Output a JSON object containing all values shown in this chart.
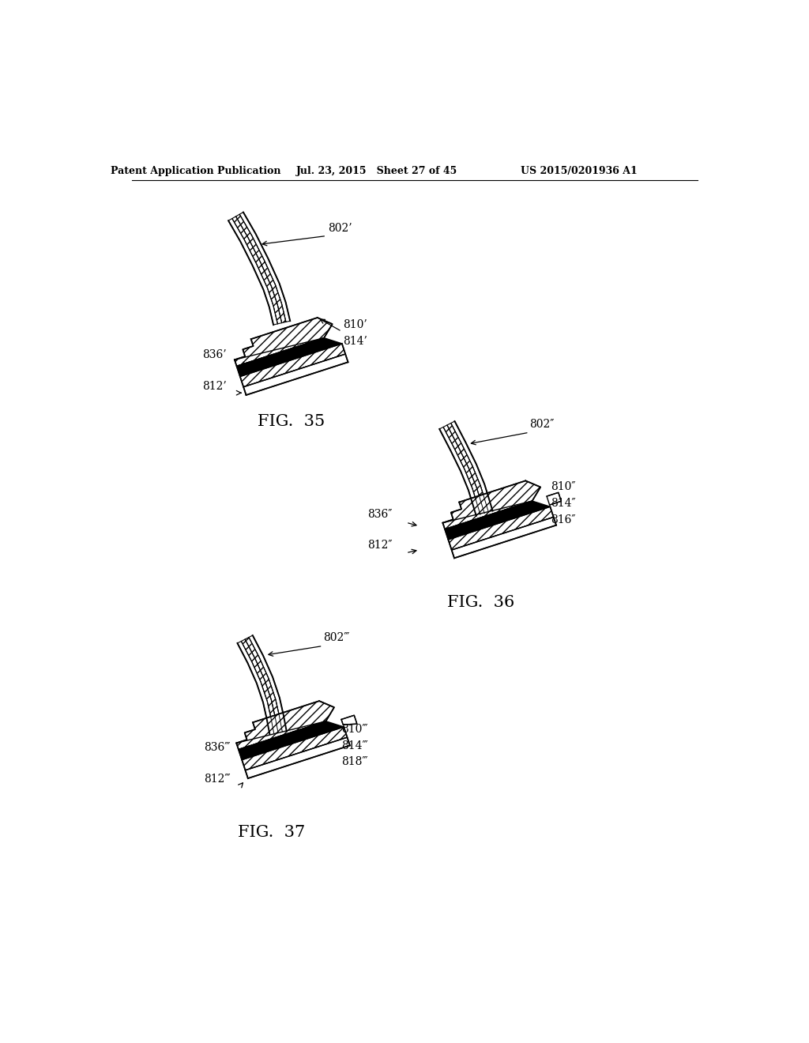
{
  "header_left": "Patent Application Publication",
  "header_mid": "Jul. 23, 2015   Sheet 27 of 45",
  "header_right": "US 2015/0201936 A1",
  "fig35_label": "FIG.  35",
  "fig36_label": "FIG.  36",
  "fig37_label": "FIG.  37",
  "bg_color": "#ffffff",
  "line_color": "#000000",
  "fig35_labels": {
    "802p": "802’",
    "810p": "810’",
    "814p": "814’",
    "836p": "836’",
    "812p": "812’"
  },
  "fig36_labels": {
    "802pp": "802″",
    "810pp": "810″",
    "814pp": "814″",
    "816pp": "816″",
    "836pp": "836″",
    "812pp": "812″"
  },
  "fig37_labels": {
    "802ppp": "802‴",
    "810ppp": "810‴",
    "814ppp": "814‴",
    "818ppp": "818‴",
    "836ppp": "836‴",
    "812ppp": "812‴"
  }
}
